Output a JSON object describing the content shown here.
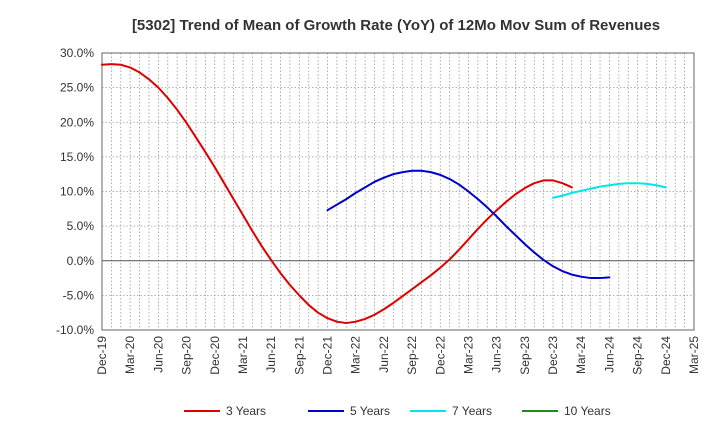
{
  "chart_data": {
    "type": "line",
    "title": "[5302]  Trend of Mean of Growth Rate (YoY) of 12Mo Mov Sum of Revenues",
    "xlabel": "",
    "ylabel": "",
    "ylim": [
      -10,
      30
    ],
    "y_ticks": [
      30,
      25,
      20,
      15,
      10,
      5,
      0,
      -5,
      -10
    ],
    "y_tick_labels": [
      "30.0%",
      "25.0%",
      "20.0%",
      "15.0%",
      "10.0%",
      "5.0%",
      "0.0%",
      "-5.0%",
      "-10.0%"
    ],
    "x_tick_labels": [
      "Dec-19",
      "Mar-20",
      "Jun-20",
      "Sep-20",
      "Dec-20",
      "Mar-21",
      "Jun-21",
      "Sep-21",
      "Dec-21",
      "Mar-22",
      "Jun-22",
      "Sep-22",
      "Dec-22",
      "Mar-23",
      "Jun-23",
      "Sep-23",
      "Dec-23",
      "Mar-24",
      "Jun-24",
      "Sep-24",
      "Dec-24",
      "Mar-25"
    ],
    "grid": true,
    "legend_position": "bottom",
    "series": [
      {
        "name": "3 Years",
        "color": "#dd0000",
        "start_index": 0,
        "values": [
          28.3,
          28.4,
          28.3,
          27.9,
          27.2,
          26.2,
          25.0,
          23.5,
          21.8,
          19.9,
          17.8,
          15.7,
          13.5,
          11.2,
          8.9,
          6.6,
          4.3,
          2.1,
          0.1,
          -1.8,
          -3.5,
          -5.0,
          -6.4,
          -7.5,
          -8.3,
          -8.8,
          -9.0,
          -8.8,
          -8.4,
          -7.8,
          -7.0,
          -6.1,
          -5.1,
          -4.1,
          -3.1,
          -2.1,
          -1.0,
          0.2,
          1.6,
          3.1,
          4.6,
          6.0,
          7.3,
          8.5,
          9.6,
          10.5,
          11.2,
          11.6,
          11.6,
          11.2,
          10.6
        ],
        "label_every": 1
      },
      {
        "name": "5 Years",
        "color": "#0000cc",
        "start_index": 24,
        "values": [
          7.3,
          8.1,
          8.9,
          9.8,
          10.6,
          11.4,
          12.0,
          12.5,
          12.8,
          13.0,
          13.0,
          12.8,
          12.4,
          11.8,
          11.0,
          10.0,
          8.9,
          7.7,
          6.4,
          5.0,
          3.7,
          2.4,
          1.2,
          0.1,
          -0.8,
          -1.5,
          -2.0,
          -2.3,
          -2.5,
          -2.5,
          -2.4
        ]
      },
      {
        "name": "7 Years",
        "color": "#00e5e5",
        "start_index": 48,
        "values": [
          9.1,
          9.4,
          9.8,
          10.1,
          10.4,
          10.7,
          10.9,
          11.1,
          11.2,
          11.2,
          11.1,
          10.9,
          10.6
        ]
      },
      {
        "name": "10 Years",
        "color": "#228822",
        "start_index": 0,
        "values": []
      }
    ]
  }
}
